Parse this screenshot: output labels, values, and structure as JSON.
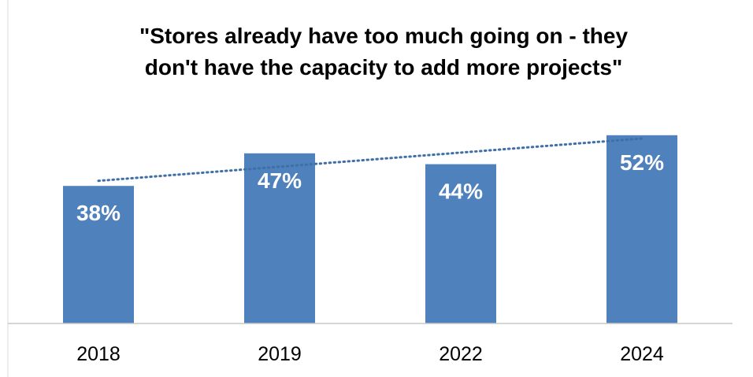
{
  "chart_data": {
    "type": "bar",
    "title": "\"Stores already have too much going on - they don't have the capacity to add more projects\"",
    "title_lines": [
      "\"Stores already have too much going on - they",
      "don't have the capacity to add more projects\""
    ],
    "categories": [
      "2018",
      "2019",
      "2022",
      "2024"
    ],
    "values": [
      38,
      47,
      44,
      52
    ],
    "data_labels": [
      "38%",
      "47%",
      "44%",
      "52%"
    ],
    "unit": "%",
    "xlabel": "",
    "ylabel": "",
    "ylim": [
      0,
      60
    ],
    "grid": false,
    "legend": "none",
    "trendline": "linear",
    "colors": {
      "bar": "#4f81bd",
      "trendline": "#3f6fa6",
      "axis": "#c8c8c8",
      "label": "#ffffff"
    }
  }
}
